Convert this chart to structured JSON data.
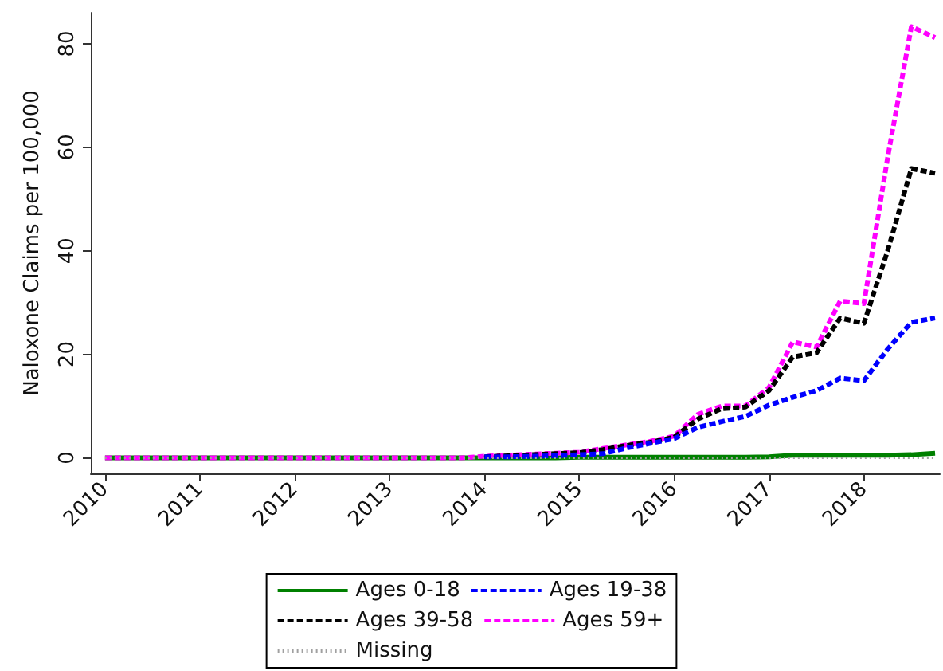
{
  "chart_data": {
    "type": "line",
    "ylabel": "Naloxone Claims per 100,000",
    "x": [
      2010,
      2010.25,
      2010.5,
      2010.75,
      2011,
      2011.25,
      2011.5,
      2011.75,
      2012,
      2012.25,
      2012.5,
      2012.75,
      2013,
      2013.25,
      2013.5,
      2013.75,
      2014,
      2014.25,
      2014.5,
      2014.75,
      2015,
      2015.25,
      2015.5,
      2015.75,
      2016,
      2016.25,
      2016.5,
      2016.75,
      2017,
      2017.25,
      2017.5,
      2017.75,
      2018,
      2018.25,
      2018.5,
      2018.75
    ],
    "series": [
      {
        "name": "Missing",
        "color": "#a0a0a0",
        "line_style": "dotted",
        "values": [
          0,
          0,
          0,
          0,
          0,
          0,
          0,
          0,
          0,
          0,
          0,
          0,
          0,
          0,
          0,
          0,
          0,
          0,
          0,
          0,
          0,
          0,
          0,
          0,
          0,
          0,
          0,
          0,
          0,
          0,
          0,
          0,
          0,
          0,
          0,
          0
        ]
      },
      {
        "name": "Ages 0-18",
        "color": "#008000",
        "line_style": "solid",
        "values": [
          0,
          0,
          0,
          0,
          0,
          0,
          0,
          0,
          0,
          0,
          0,
          0,
          0,
          0,
          0,
          0,
          0,
          0,
          0,
          0,
          0.1,
          0.1,
          0.1,
          0.1,
          0.1,
          0.1,
          0.1,
          0.1,
          0.2,
          0.5,
          0.5,
          0.5,
          0.5,
          0.5,
          0.6,
          0.9
        ]
      },
      {
        "name": "Ages 19-38",
        "color": "#0000ff",
        "line_style": "dashed",
        "values": [
          null,
          null,
          null,
          null,
          null,
          null,
          null,
          null,
          null,
          null,
          null,
          null,
          null,
          null,
          null,
          null,
          0.2,
          0.2,
          0.3,
          0.4,
          0.6,
          0.8,
          1.9,
          2.8,
          3.7,
          5.9,
          7,
          8,
          10.2,
          11.7,
          13,
          15.4,
          14.9,
          21,
          26.2,
          27
        ]
      },
      {
        "name": "Ages 39-58",
        "color": "#000000",
        "line_style": "dashed",
        "values": [
          null,
          null,
          null,
          null,
          null,
          null,
          null,
          null,
          null,
          null,
          null,
          null,
          null,
          null,
          null,
          null,
          0.2,
          0.4,
          0.6,
          0.8,
          1,
          1.6,
          2.4,
          3,
          4,
          7.5,
          9.5,
          9.8,
          13,
          19.5,
          20.3,
          27,
          26,
          40,
          55.9,
          55
        ]
      },
      {
        "name": "Ages 59+",
        "color": "#ff00ff",
        "line_style": "dashed",
        "values": [
          0,
          0,
          0,
          0,
          0,
          0,
          0,
          0,
          0,
          0,
          0,
          0,
          0,
          0,
          0,
          0,
          0.3,
          0.5,
          0.7,
          0.9,
          1.1,
          1.8,
          2.5,
          3.2,
          4.2,
          8.4,
          10,
          10,
          13.6,
          22.4,
          21.4,
          30.3,
          29.8,
          58,
          83.3,
          81.2
        ]
      }
    ],
    "xlim": [
      2009.85,
      2018.8
    ],
    "xticks": [
      2010,
      2011,
      2012,
      2013,
      2014,
      2015,
      2016,
      2017,
      2018
    ],
    "ylim": [
      -3,
      86
    ],
    "yticks": [
      0,
      20,
      40,
      60,
      80
    ],
    "grid": false,
    "legend": "bottom",
    "marker": "none"
  }
}
